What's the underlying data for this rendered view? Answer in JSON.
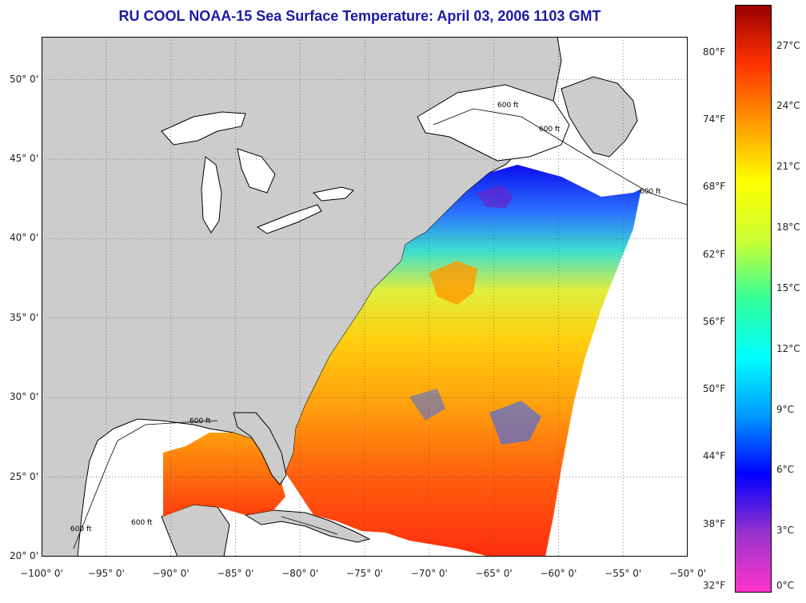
{
  "title": "RU COOL  NOAA-15  Sea Surface Temperature:  April 03, 2006 1103 GMT",
  "map": {
    "lat_labels": [
      {
        "label": "50° 0'",
        "lat": 50
      },
      {
        "label": "45° 0'",
        "lat": 45
      },
      {
        "label": "40° 0'",
        "lat": 40
      },
      {
        "label": "35° 0'",
        "lat": 35
      },
      {
        "label": "30° 0'",
        "lat": 30
      },
      {
        "label": "25° 0'",
        "lat": 25
      },
      {
        "label": "20° 0'",
        "lat": 20
      }
    ],
    "lon_labels": [
      {
        "label": "−100° 0'",
        "lon": -100
      },
      {
        "label": "−95° 0'",
        "lon": -95
      },
      {
        "label": "−90° 0'",
        "lon": -90
      },
      {
        "label": "−85° 0'",
        "lon": -85
      },
      {
        "label": "−80° 0'",
        "lon": -80
      },
      {
        "label": "−75° 0'",
        "lon": -75
      },
      {
        "label": "−70° 0'",
        "lon": -70
      },
      {
        "label": "−65° 0'",
        "lon": -65
      },
      {
        "label": "−60° 0'",
        "lon": -60
      },
      {
        "label": "−55° 0'",
        "lon": -55
      },
      {
        "label": "−50° 0'",
        "lon": -50
      }
    ],
    "lon_range": [
      -100,
      -50
    ],
    "lat_range": [
      20,
      52.7
    ],
    "isobath_labels": [
      "600 ft",
      "600 ft",
      "600 ft",
      "600 ft",
      "600 ft",
      "600 ft"
    ],
    "land_color": "#cccccc",
    "ocean_color": "#ffffff"
  },
  "colorbar": {
    "fahrenheit_labels": [
      {
        "label": "80°F",
        "value_f": 80
      },
      {
        "label": "74°F",
        "value_f": 74
      },
      {
        "label": "68°F",
        "value_f": 68
      },
      {
        "label": "62°F",
        "value_f": 62
      },
      {
        "label": "56°F",
        "value_f": 56
      },
      {
        "label": "50°F",
        "value_f": 50
      },
      {
        "label": "44°F",
        "value_f": 44
      },
      {
        "label": "38°F",
        "value_f": 38
      },
      {
        "label": "32°F",
        "value_f": 32
      }
    ],
    "celsius_labels": [
      {
        "label": "27°C",
        "value_c": 27
      },
      {
        "label": "24°C",
        "value_c": 24
      },
      {
        "label": "21°C",
        "value_c": 21
      },
      {
        "label": "18°C",
        "value_c": 18
      },
      {
        "label": "15°C",
        "value_c": 15
      },
      {
        "label": "12°C",
        "value_c": 12
      },
      {
        "label": "9°C",
        "value_c": 9
      },
      {
        "label": "6°C",
        "value_c": 6
      },
      {
        "label": "3°C",
        "value_c": 3
      },
      {
        "label": "0°C",
        "value_c": 0
      }
    ],
    "range_c": [
      0,
      29
    ],
    "colors": [
      "#ff33cc",
      "#9933cc",
      "#0000ff",
      "#0099ff",
      "#00ffff",
      "#33ff99",
      "#ccff33",
      "#ffff00",
      "#ff9900",
      "#ff3300",
      "#990000"
    ]
  }
}
